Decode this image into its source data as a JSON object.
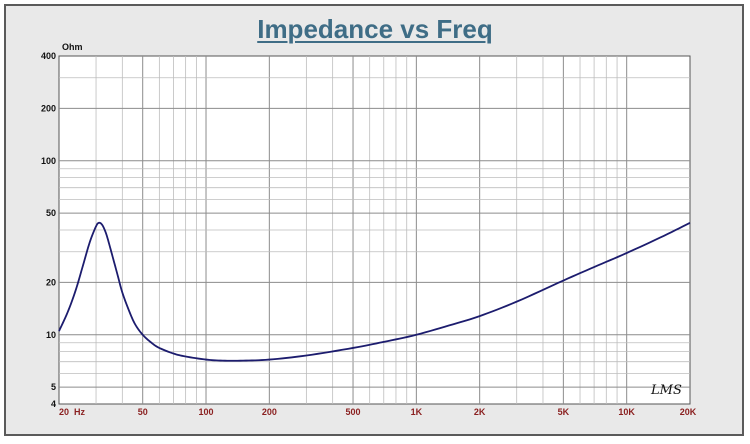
{
  "chart_data": {
    "type": "line",
    "title": "Impedance vs Freq",
    "ylabel": "Ohm",
    "xlabel": "",
    "x_scale": "log",
    "y_scale": "log",
    "xlim": [
      20,
      20000
    ],
    "ylim": [
      4,
      400
    ],
    "x_tick_labels": [
      {
        "value": 20,
        "label": "20  Hz"
      },
      {
        "value": 50,
        "label": "50"
      },
      {
        "value": 100,
        "label": "100"
      },
      {
        "value": 200,
        "label": "200"
      },
      {
        "value": 500,
        "label": "500"
      },
      {
        "value": 1000,
        "label": "1K"
      },
      {
        "value": 2000,
        "label": "2K"
      },
      {
        "value": 5000,
        "label": "5K"
      },
      {
        "value": 10000,
        "label": "10K"
      },
      {
        "value": 20000,
        "label": "20K"
      }
    ],
    "y_tick_labels": [
      {
        "value": 400,
        "label": "400"
      },
      {
        "value": 200,
        "label": "200"
      },
      {
        "value": 100,
        "label": "100"
      },
      {
        "value": 50,
        "label": "50"
      },
      {
        "value": 20,
        "label": "20"
      },
      {
        "value": 10,
        "label": "10"
      },
      {
        "value": 5,
        "label": "5"
      },
      {
        "value": 4,
        "label": "4"
      }
    ],
    "grid": true,
    "series": [
      {
        "color": "#1c1c6e",
        "x": [
          20,
          22,
          24,
          26,
          28,
          30,
          31,
          32,
          33,
          34,
          36,
          38,
          40,
          43,
          46,
          50,
          55,
          60,
          70,
          80,
          100,
          120,
          150,
          200,
          300,
          500,
          700,
          1000,
          1500,
          2000,
          3000,
          5000,
          7000,
          10000,
          15000,
          20000
        ],
        "y": [
          10.5,
          13.5,
          18,
          25,
          34,
          42,
          44,
          43,
          40,
          36,
          28,
          22,
          17.5,
          13.8,
          11.5,
          10.0,
          9.0,
          8.4,
          7.8,
          7.5,
          7.2,
          7.1,
          7.1,
          7.2,
          7.6,
          8.4,
          9.1,
          10.0,
          11.5,
          12.8,
          15.5,
          20.5,
          24.5,
          29.5,
          37.0,
          44.0
        ]
      }
    ],
    "annotations": [
      "LMS"
    ]
  }
}
